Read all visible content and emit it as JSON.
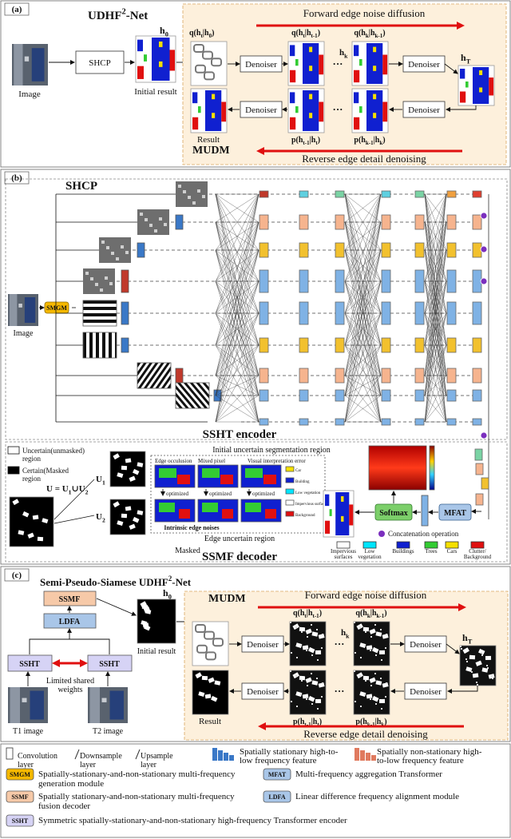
{
  "panel_a": {
    "label": "(a)",
    "title": [
      "UDHF",
      "2",
      "-Net"
    ],
    "image": "Image",
    "shcp": "SHCP",
    "initial_result": "Initial result",
    "h0": [
      "h",
      "0"
    ],
    "mudm": {
      "name": "MUDM",
      "forward": "Forward edge noise diffusion",
      "reverse": "Reverse edge detail denoising",
      "denoisers": [
        "Denoiser",
        "Denoiser",
        "Denoiser",
        "Denoiser"
      ],
      "result": "Result",
      "q_t0": [
        "q(h",
        "t",
        "|h",
        "0",
        ")"
      ],
      "q_tt": [
        "q(h",
        "t",
        "|h",
        "t-1",
        ")"
      ],
      "q_kk": [
        "q(h",
        "k",
        "|h",
        "k-1",
        ")"
      ],
      "h_k": [
        "h",
        "k"
      ],
      "h_T": [
        "h",
        "T"
      ],
      "p_t": [
        "p(h",
        "t-1",
        "|h",
        "t",
        ")"
      ],
      "p_k": [
        "p(h",
        "k-1",
        "|h",
        "k",
        ")"
      ],
      "dots": [
        "···",
        "···"
      ]
    }
  },
  "panel_b": {
    "label": "(b)",
    "title": "SHCP",
    "image": "Image",
    "smgm": "SMGM",
    "encoder": "SSHT encoder",
    "uncertain": [
      "Uncertain(unmasked)",
      "region"
    ],
    "certain": [
      "Certain(Masked",
      "region"
    ],
    "union": [
      "U = U",
      "1",
      "∪U",
      "2"
    ],
    "u1": [
      "U",
      "1"
    ],
    "u2": [
      "U",
      "2"
    ],
    "initial_region": "Initial uncertain segmentation region",
    "tiles": [
      "Edge occulusion",
      "Mixed pixel",
      "Visual interpretation error"
    ],
    "optimized": [
      "optimized",
      "optimized",
      "optimized"
    ],
    "tile_legend": [
      "Car",
      "Building",
      "Low vegetation",
      "Impervious surfaces",
      "Background"
    ],
    "intrinsic": "Intrinsic edge noises",
    "edge_region": "Edge uncertain region",
    "masked": "Masked",
    "decoder": "SSMF decoder",
    "softmax": "Softmax",
    "mfat": "MFAT",
    "concat": "Concatenation operation",
    "classes": [
      {
        "name": [
          "Impervious",
          "surfaces"
        ],
        "color": "#ffffff"
      },
      {
        "name": [
          "Low",
          "vegetation"
        ],
        "color": "#00e5ff"
      },
      {
        "name": [
          "Buildings"
        ],
        "color": "#1020d0"
      },
      {
        "name": [
          "Trees"
        ],
        "color": "#33cc33"
      },
      {
        "name": [
          "Cars"
        ],
        "color": "#f5e000"
      },
      {
        "name": [
          "Clutter/",
          "Background"
        ],
        "color": "#e01010"
      }
    ]
  },
  "panel_c": {
    "label": "(c)",
    "title": [
      "Semi-Pseudo-Siamese UDHF",
      "2",
      "-Net"
    ],
    "ssmf": "SSMF",
    "ldfa": "LDFA",
    "ssht": [
      "SSHT",
      "SSHT"
    ],
    "shared": [
      "Limited shared",
      "weights"
    ],
    "t1": "T1 image",
    "t2": "T2 image",
    "h0": [
      "h",
      "0"
    ],
    "initial_result": "Initial result",
    "mudm": {
      "name": "MUDM",
      "forward": "Forward edge noise diffusion",
      "reverse": "Reverse edge detail denoising",
      "denoisers": [
        "Denoiser",
        "Denoiser",
        "Denoiser",
        "Denoiser"
      ],
      "result": "Result",
      "q_tt": [
        "q(h",
        "t",
        "|h",
        "t-1",
        ")"
      ],
      "q_kk": [
        "q(h",
        "k",
        "|h",
        "k-1",
        ")"
      ],
      "h_k": [
        "h",
        "k"
      ],
      "h_T": [
        "h",
        "T"
      ],
      "p_t": [
        "p(h",
        "t-1",
        "|h",
        "t",
        ")"
      ],
      "p_k": [
        "p(h",
        "k-1",
        "|h",
        "k",
        ")"
      ],
      "dots": [
        "···",
        "···"
      ]
    }
  },
  "legend": {
    "icons": [
      [
        "Convolution",
        "layer"
      ],
      [
        "Downsample",
        "layer"
      ],
      [
        "Upsample",
        "layer"
      ],
      [
        "Spatially stationary high-to-",
        "low frequency feature"
      ],
      [
        "Spatially non-stationary high-",
        "to-low frequency feature"
      ]
    ],
    "modules": [
      {
        "tag": "SMGM",
        "color": "#f5b800",
        "lines": [
          "Spatially-stationary-and-non-stationary multi-frequency",
          "generation module"
        ]
      },
      {
        "tag": "MFAT",
        "color": "#a9c6e8",
        "lines": [
          "Multi-frequency aggregation Transformer"
        ]
      },
      {
        "tag": "SSMF",
        "color": "#f6c9a8",
        "lines": [
          "Spatially stationary-and-non-stationary multi-frequency",
          "fusion decoder"
        ]
      },
      {
        "tag": "LDFA",
        "color": "#a9c6e8",
        "lines": [
          "Linear difference frequency alignment module"
        ]
      },
      {
        "tag": "SSHT",
        "color": "#d6d3f5",
        "lines": [
          "Symmetric spatially-stationary-and-non-stationary high-frequency Transformer encoder"
        ]
      }
    ]
  }
}
